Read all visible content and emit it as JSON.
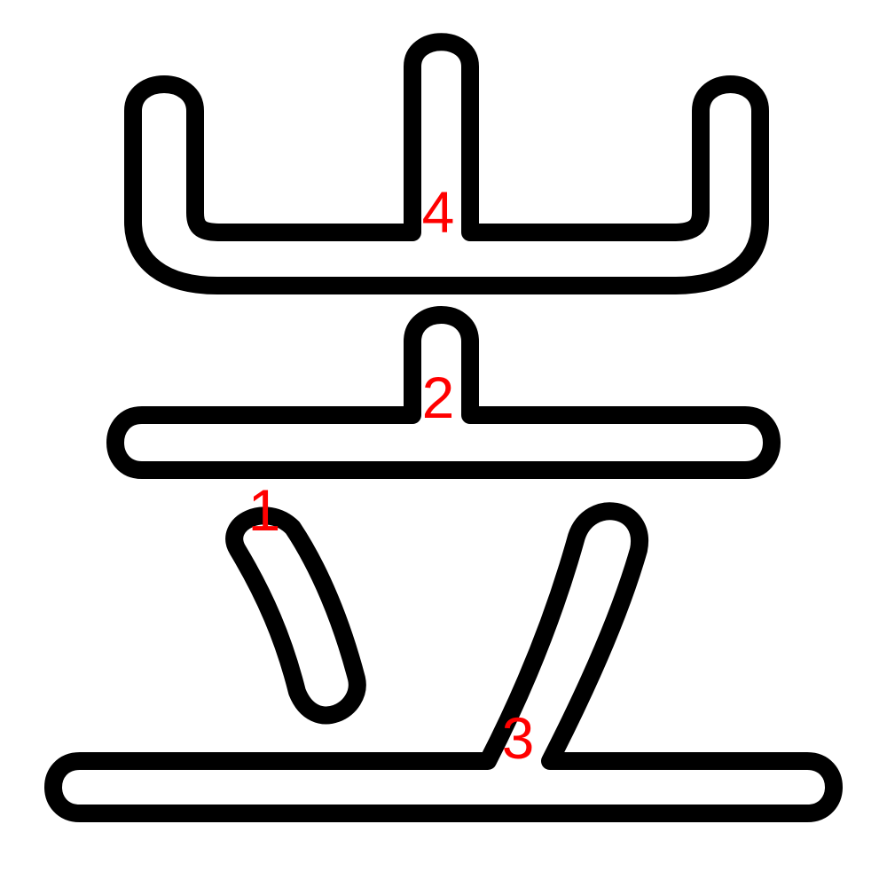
{
  "figure": {
    "description_role": "character-stroke-order",
    "outline_color": "#000000",
    "label_color": "#ff0000",
    "background": "#ffffff"
  },
  "strokes": [
    {
      "id": "stroke-1",
      "label": "1"
    },
    {
      "id": "stroke-2",
      "label": "2"
    },
    {
      "id": "stroke-3",
      "label": "3"
    },
    {
      "id": "stroke-4",
      "label": "4"
    }
  ]
}
